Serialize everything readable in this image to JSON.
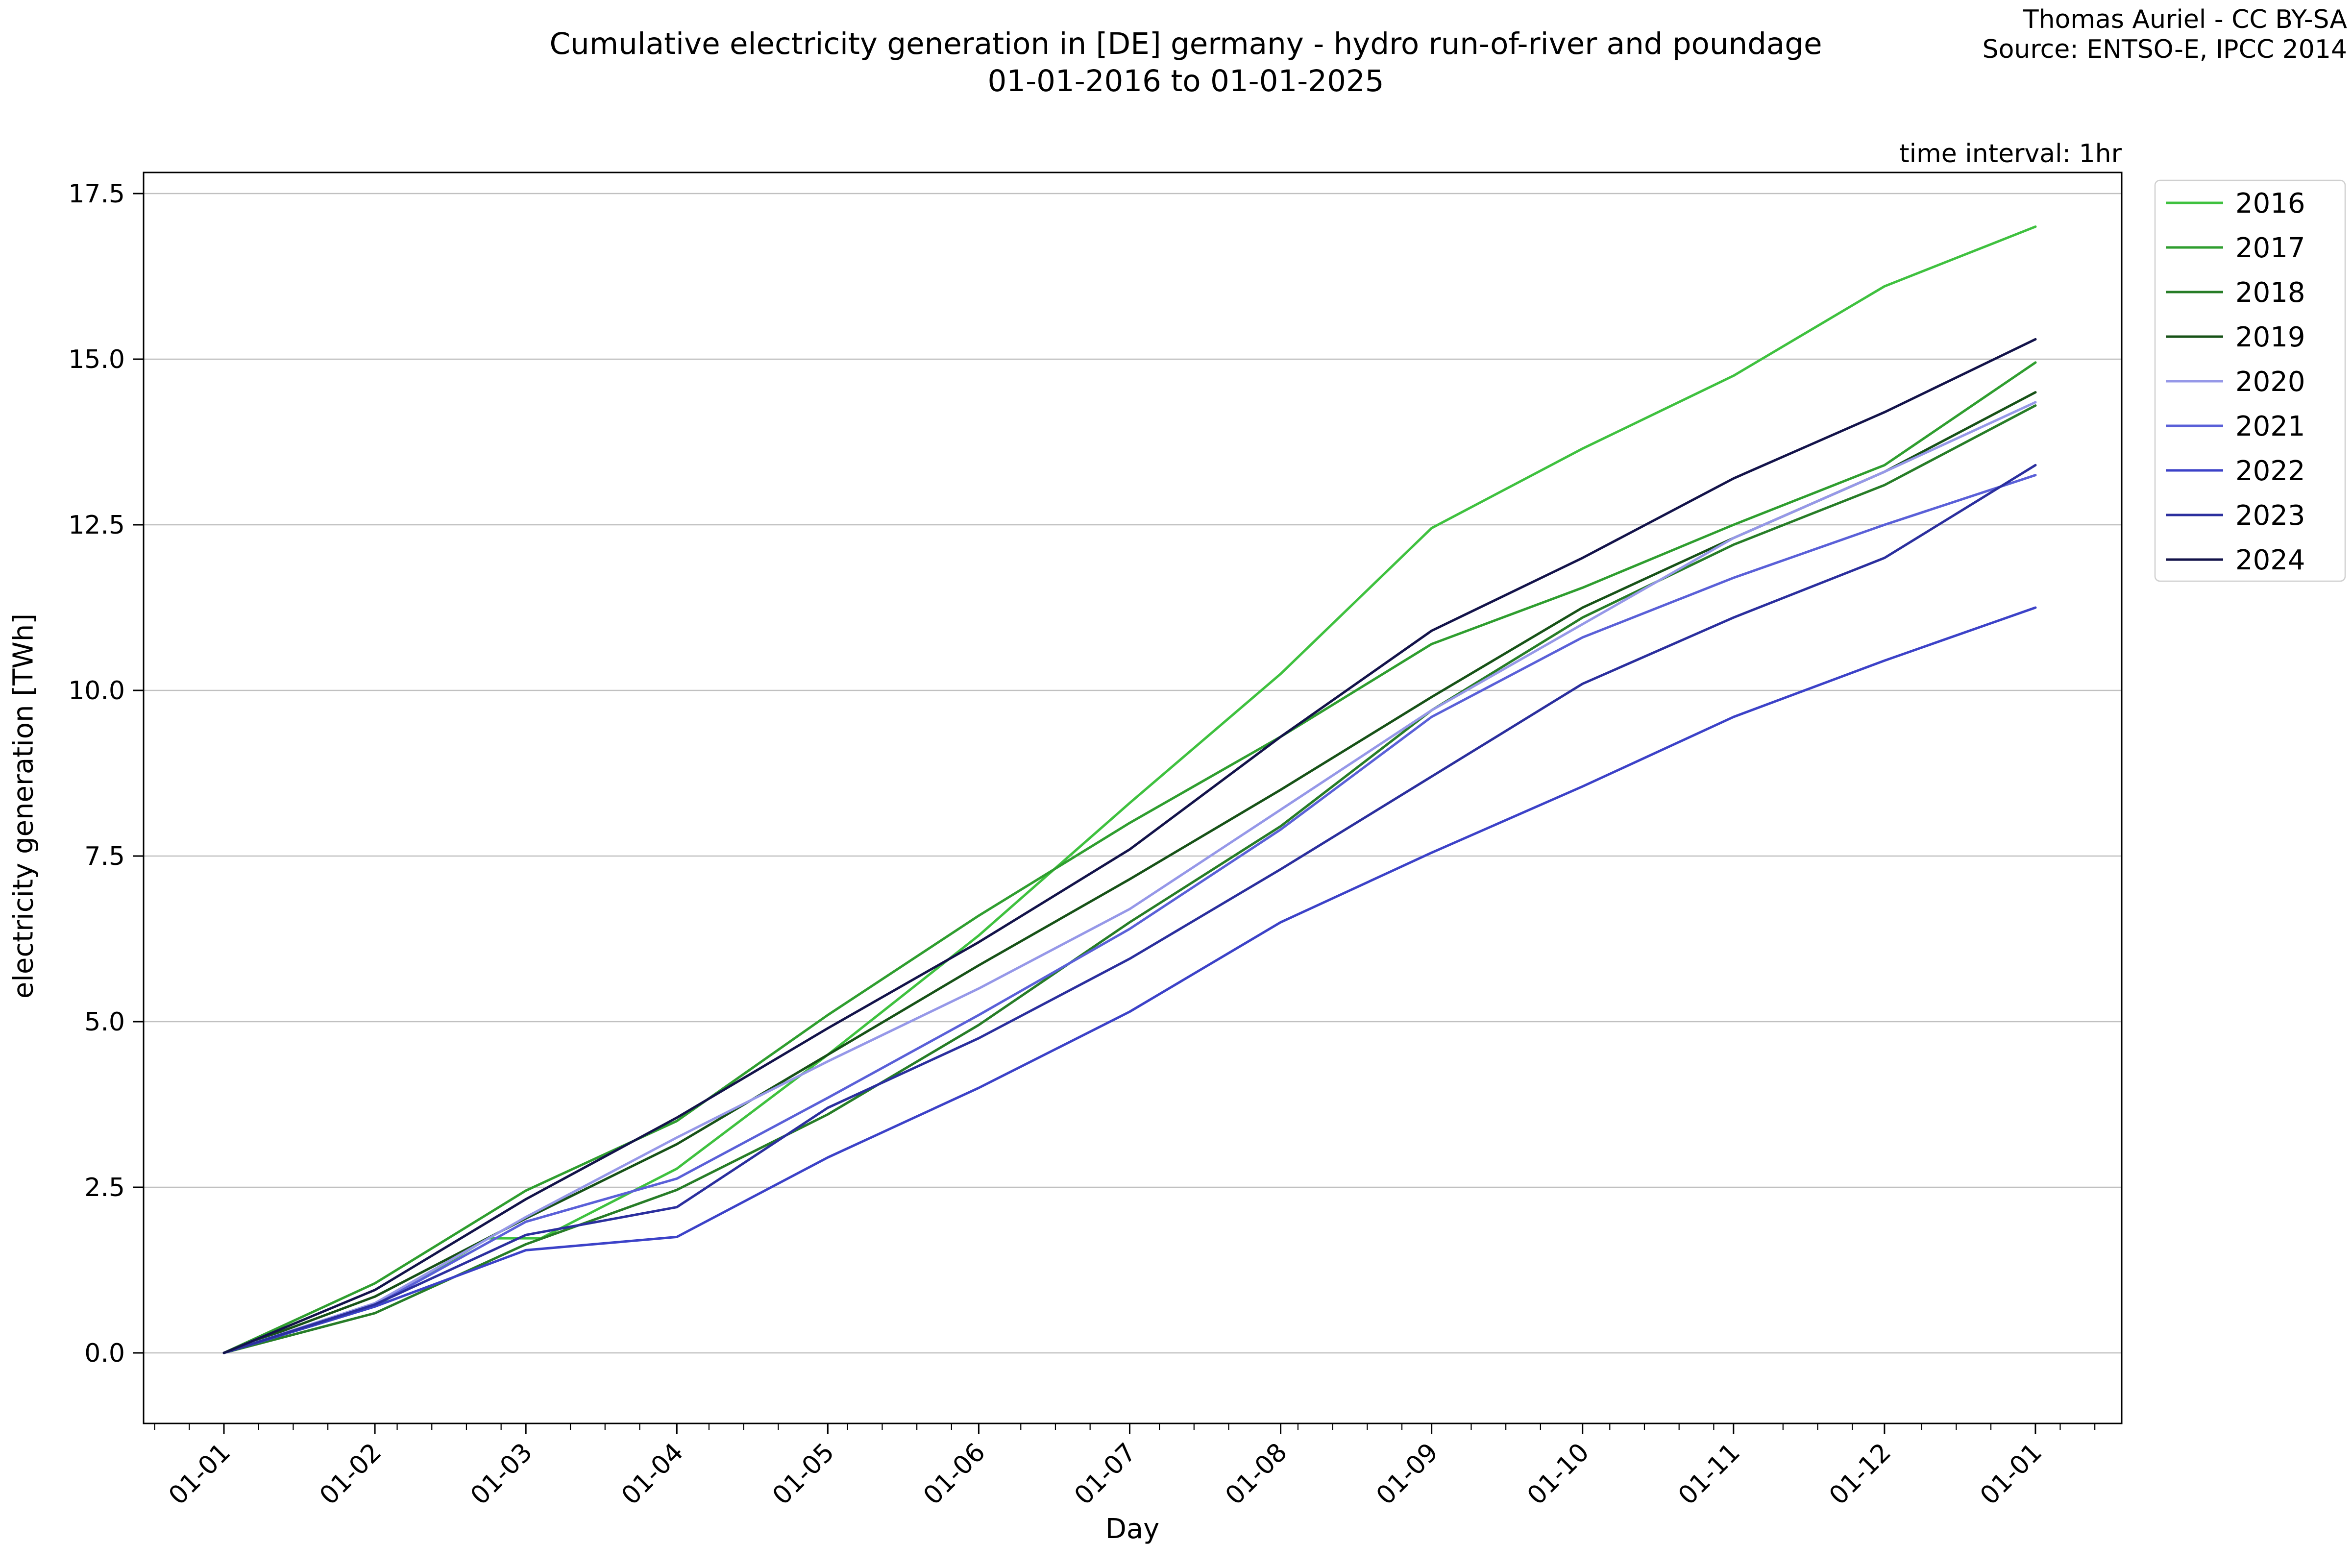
{
  "header": {
    "title_line1": "Cumulative electricity generation in [DE] germany - hydro run-of-river and poundage",
    "title_line2": "01-01-2016 to 01-01-2025",
    "credit_line1": "Thomas Auriel - CC BY-SA",
    "credit_line2": "Source: ENTSO-E, IPCC 2014",
    "time_interval_note": "time interval: 1hr"
  },
  "chart_data": {
    "type": "line",
    "title": "Cumulative electricity generation in [DE] germany - hydro run-of-river and poundage 01-01-2016 to 01-01-2025",
    "xlabel": "Day",
    "ylabel": "electricity generation [TWh]",
    "x_tick_labels": [
      "01-01",
      "01-02",
      "01-03",
      "01-04",
      "01-05",
      "01-06",
      "01-07",
      "01-08",
      "01-09",
      "01-10",
      "01-11",
      "01-12",
      "01-01"
    ],
    "y_ticks": [
      0.0,
      2.5,
      5.0,
      7.5,
      10.0,
      12.5,
      15.0,
      17.5
    ],
    "ylim": [
      -1.07,
      17.82
    ],
    "xlim_months": [
      -0.53,
      12.57
    ],
    "grid": "horizontal-only",
    "gridline_color": "#c0c0c0",
    "legend_position": "upper-right-outside",
    "units": "TWh",
    "x_units": "month-of-year, cumulative from Jan 1",
    "series": [
      {
        "name": "2016",
        "color": "#3fc13f",
        "x": [
          0,
          1,
          1.75,
          2.1,
          3,
          4,
          5,
          6,
          7,
          8,
          9,
          10,
          11,
          12
        ],
        "values": [
          0,
          0.7,
          1.73,
          1.73,
          2.78,
          4.5,
          6.3,
          8.3,
          10.25,
          12.45,
          13.65,
          14.75,
          16.1,
          17.0
        ]
      },
      {
        "name": "2017",
        "color": "#2f9e2f",
        "x": [
          0,
          1,
          2,
          3,
          4,
          5,
          6,
          7,
          8,
          9,
          10,
          11,
          12
        ],
        "values": [
          0,
          1.05,
          2.45,
          3.5,
          5.1,
          6.6,
          8.0,
          9.3,
          10.7,
          11.55,
          12.5,
          13.4,
          14.95
        ]
      },
      {
        "name": "2018",
        "color": "#277d27",
        "x": [
          0,
          1,
          2,
          3,
          4,
          5,
          6,
          7,
          8,
          9,
          10,
          11,
          12
        ],
        "values": [
          0,
          0.6,
          1.64,
          2.46,
          3.6,
          4.95,
          6.5,
          7.95,
          9.7,
          11.1,
          12.2,
          13.1,
          14.3
        ]
      },
      {
        "name": "2019",
        "color": "#175217",
        "x": [
          0,
          1,
          2,
          3,
          4,
          5,
          6,
          7,
          8,
          9,
          10,
          11,
          12
        ],
        "values": [
          0,
          0.85,
          2.03,
          3.15,
          4.5,
          5.85,
          7.15,
          8.5,
          9.9,
          11.25,
          12.3,
          13.3,
          14.5
        ]
      },
      {
        "name": "2020",
        "color": "#9698e8",
        "x": [
          0,
          1,
          2,
          3,
          4,
          5,
          6,
          7,
          8,
          9,
          10,
          11,
          12
        ],
        "values": [
          0,
          0.75,
          2.05,
          3.25,
          4.4,
          5.5,
          6.7,
          8.2,
          9.7,
          11.0,
          12.3,
          13.3,
          14.35
        ]
      },
      {
        "name": "2021",
        "color": "#5a60d8",
        "x": [
          0,
          1,
          2,
          3,
          4,
          5,
          6,
          7,
          8,
          9,
          10,
          11,
          12
        ],
        "values": [
          0,
          0.72,
          1.98,
          2.63,
          3.85,
          5.1,
          6.4,
          7.9,
          9.6,
          10.8,
          11.7,
          12.5,
          13.25
        ]
      },
      {
        "name": "2022",
        "color": "#3c42c8",
        "x": [
          0,
          1,
          2,
          3,
          4,
          5,
          6,
          7,
          8,
          9,
          10,
          11,
          12
        ],
        "values": [
          0,
          0.7,
          1.55,
          1.75,
          2.95,
          4.0,
          5.15,
          6.5,
          7.55,
          8.55,
          9.6,
          10.45,
          11.25
        ]
      },
      {
        "name": "2023",
        "color": "#2b2f9e",
        "x": [
          0,
          1,
          2,
          3,
          4,
          5,
          6,
          7,
          8,
          9,
          10,
          11,
          12
        ],
        "values": [
          0,
          0.73,
          1.78,
          2.2,
          3.7,
          4.75,
          5.95,
          7.3,
          8.7,
          10.1,
          11.1,
          12.0,
          13.4
        ]
      },
      {
        "name": "2024",
        "color": "#13134a",
        "x": [
          0,
          1,
          2,
          3,
          4,
          5,
          6,
          7,
          8,
          9,
          10,
          11,
          12
        ],
        "values": [
          0,
          0.95,
          2.32,
          3.55,
          4.9,
          6.2,
          7.6,
          9.3,
          10.9,
          12.0,
          13.2,
          14.2,
          15.3
        ]
      }
    ]
  }
}
